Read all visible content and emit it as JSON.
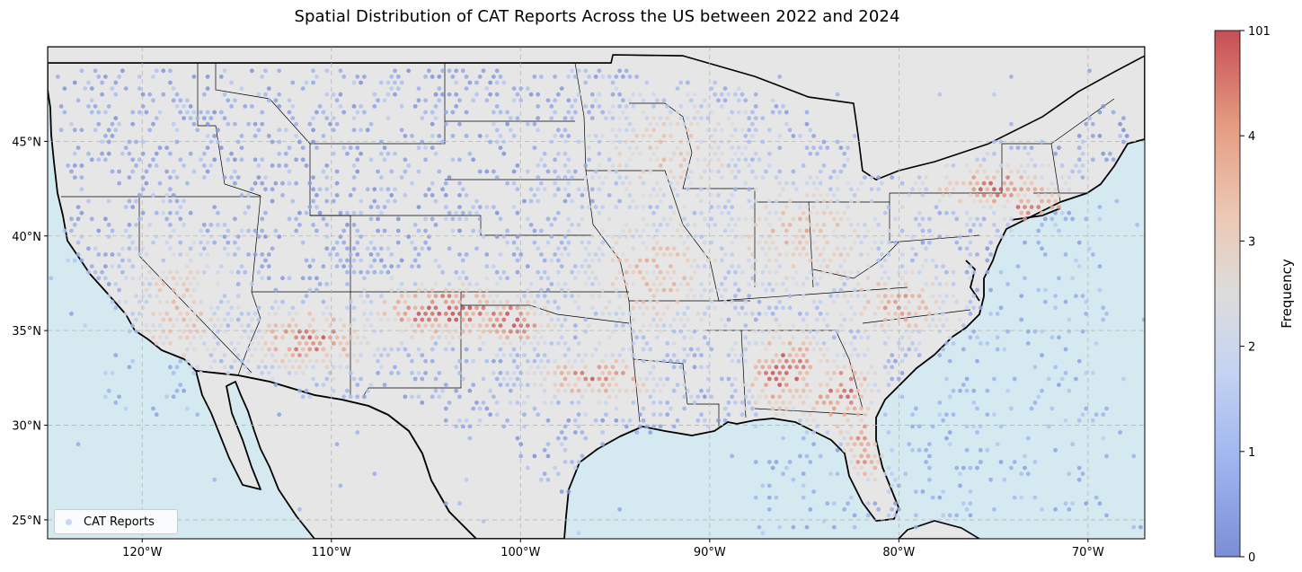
{
  "chart_data": {
    "type": "hexbin-map",
    "title": "Spatial Distribution of CAT Reports Across the US between 2022 and 2024",
    "legend": {
      "label": "CAT Reports",
      "placement": "lower-left"
    },
    "colorbar": {
      "label": "Frequency",
      "colormap": "coolwarm",
      "ticks": [
        "0",
        "1",
        "2",
        "3",
        "4",
        "101"
      ]
    },
    "x_ticks": [
      "120°W",
      "110°W",
      "100°W",
      "90°W",
      "80°W",
      "70°W"
    ],
    "y_ticks": [
      "25°N",
      "30°N",
      "35°N",
      "40°N",
      "45°N"
    ],
    "extent": {
      "lon": [
        -125,
        -67
      ],
      "lat": [
        24,
        50
      ]
    },
    "grid": true,
    "hotspots": [
      {
        "lon": -104,
        "lat": 36.0,
        "slon": 2.6,
        "slat": 1.0,
        "level": 4.6
      },
      {
        "lon": -100.5,
        "lat": 35.5,
        "slon": 1.5,
        "slat": 0.9,
        "level": 4.4
      },
      {
        "lon": -111,
        "lat": 34.5,
        "slon": 2.5,
        "slat": 1.2,
        "level": 3.8
      },
      {
        "lon": -96,
        "lat": 32.5,
        "slon": 2.4,
        "slat": 0.9,
        "level": 3.6
      },
      {
        "lon": -86,
        "lat": 32.8,
        "slon": 1.6,
        "slat": 1.6,
        "level": 4.2
      },
      {
        "lon": -83,
        "lat": 31.5,
        "slon": 1.5,
        "slat": 1.8,
        "level": 3.8
      },
      {
        "lon": -81.8,
        "lat": 28.8,
        "slon": 0.9,
        "slat": 1.6,
        "level": 3.6
      },
      {
        "lon": -75,
        "lat": 42.6,
        "slon": 2.6,
        "slat": 0.9,
        "level": 3.8
      },
      {
        "lon": -72.8,
        "lat": 41.5,
        "slon": 1.4,
        "slat": 0.7,
        "level": 4.2
      },
      {
        "lon": -80,
        "lat": 36.5,
        "slon": 2.2,
        "slat": 1.4,
        "level": 3.2
      },
      {
        "lon": -85,
        "lat": 40,
        "slon": 3,
        "slat": 2,
        "level": 2.8
      },
      {
        "lon": -93,
        "lat": 38,
        "slon": 3,
        "slat": 2.5,
        "level": 2.6
      },
      {
        "lon": -118,
        "lat": 36,
        "slon": 1.8,
        "slat": 2.5,
        "level": 2.6
      },
      {
        "lon": -92,
        "lat": 44.5,
        "slon": 3,
        "slat": 2,
        "level": 2.4
      }
    ]
  }
}
